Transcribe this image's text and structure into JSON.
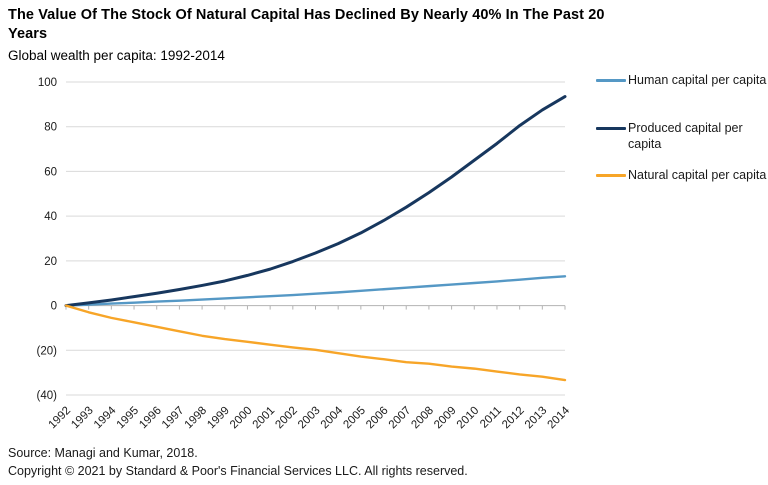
{
  "header": {
    "title": "The Value Of The Stock Of Natural Capital Has Declined By Nearly 40% In The Past 20 Years",
    "subtitle": "Global wealth per capita: 1992-2014"
  },
  "chart_data": {
    "type": "line",
    "title": "The Value Of The Stock Of Natural Capital Has Declined By Nearly 40% In The Past 20 Years",
    "subtitle": "Global wealth per capita: 1992-2014",
    "xlabel": "",
    "ylabel": "",
    "x": [
      1992,
      1993,
      1994,
      1995,
      1996,
      1997,
      1998,
      1999,
      2000,
      2001,
      2002,
      2003,
      2004,
      2005,
      2006,
      2007,
      2008,
      2009,
      2010,
      2011,
      2012,
      2013,
      2014
    ],
    "series": [
      {
        "name": "Human capital per capita",
        "color": "#5598C5",
        "width": 2.4,
        "values": [
          0,
          0.4,
          0.9,
          1.3,
          1.8,
          2.2,
          2.7,
          3.2,
          3.7,
          4.2,
          4.7,
          5.3,
          5.9,
          6.6,
          7.3,
          8.0,
          8.7,
          9.4,
          10.1,
          10.8,
          11.6,
          12.4,
          13.1
        ]
      },
      {
        "name": "Produced capital per capita",
        "color": "#17375E",
        "width": 3,
        "values": [
          0,
          1.2,
          2.5,
          4.0,
          5.5,
          7.2,
          9.0,
          11.0,
          13.5,
          16.3,
          19.7,
          23.5,
          27.7,
          32.5,
          38.0,
          44.0,
          50.5,
          57.5,
          65.0,
          72.5,
          80.5,
          87.5,
          93.5
        ]
      },
      {
        "name": "Natural capital per capita",
        "color": "#F7A528",
        "width": 2.4,
        "values": [
          0,
          -3.0,
          -5.5,
          -7.5,
          -9.5,
          -11.5,
          -13.5,
          -15.0,
          -16.2,
          -17.5,
          -18.7,
          -19.8,
          -21.3,
          -22.8,
          -24.0,
          -25.3,
          -26.0,
          -27.3,
          -28.2,
          -29.5,
          -30.8,
          -31.8,
          -33.3
        ]
      }
    ],
    "y_ticks": [
      {
        "value": 100,
        "label": "100"
      },
      {
        "value": 80,
        "label": "80"
      },
      {
        "value": 60,
        "label": "60"
      },
      {
        "value": 40,
        "label": "40"
      },
      {
        "value": 20,
        "label": "20"
      },
      {
        "value": 0,
        "label": "0"
      },
      {
        "value": -20,
        "label": "(20)"
      },
      {
        "value": -40,
        "label": "(40)"
      }
    ],
    "ylim": [
      -40,
      100
    ],
    "grid": true,
    "legend_position": "right",
    "colors": {
      "gridline": "#d9d9d9",
      "axis": "#b3b3b3",
      "tick_text": "#1a1a1a"
    }
  },
  "footer": {
    "source": "Source: Managi and Kumar, 2018.",
    "copyright": "Copyright © 2021 by Standard & Poor's Financial Services LLC. All rights reserved."
  }
}
